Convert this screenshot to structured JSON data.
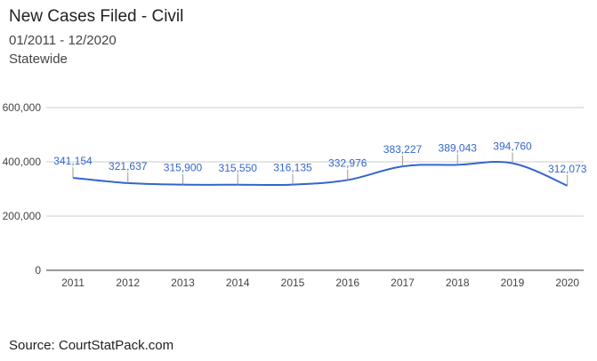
{
  "header": {
    "title": "New Cases Filed - Civil",
    "date_range": "01/2011 - 12/2020",
    "region": "Statewide"
  },
  "footer": {
    "source": "Source: CourtStatPack.com"
  },
  "colors": {
    "line": "#3366cc",
    "label": "#3366cc",
    "grid": "#cccccc",
    "axis": "#333333"
  },
  "chart_data": {
    "type": "line",
    "categories": [
      "2011",
      "2012",
      "2013",
      "2014",
      "2015",
      "2016",
      "2017",
      "2018",
      "2019",
      "2020"
    ],
    "series": [
      {
        "values": [
          341154,
          321637,
          315900,
          315550,
          316135,
          332976,
          383227,
          389043,
          394760,
          312073
        ],
        "labels": [
          "341,154",
          "321,637",
          "315,900",
          "315,550",
          "316,135",
          "332,976",
          "383,227",
          "389,043",
          "394,760",
          "312,073"
        ]
      }
    ],
    "ylim": [
      0,
      600000
    ],
    "yticks": [
      0,
      200000,
      400000,
      600000
    ],
    "ytick_labels": [
      "0",
      "200,000",
      "400,000",
      "600,000"
    ],
    "grid": true,
    "smooth": true,
    "legend": "none"
  }
}
